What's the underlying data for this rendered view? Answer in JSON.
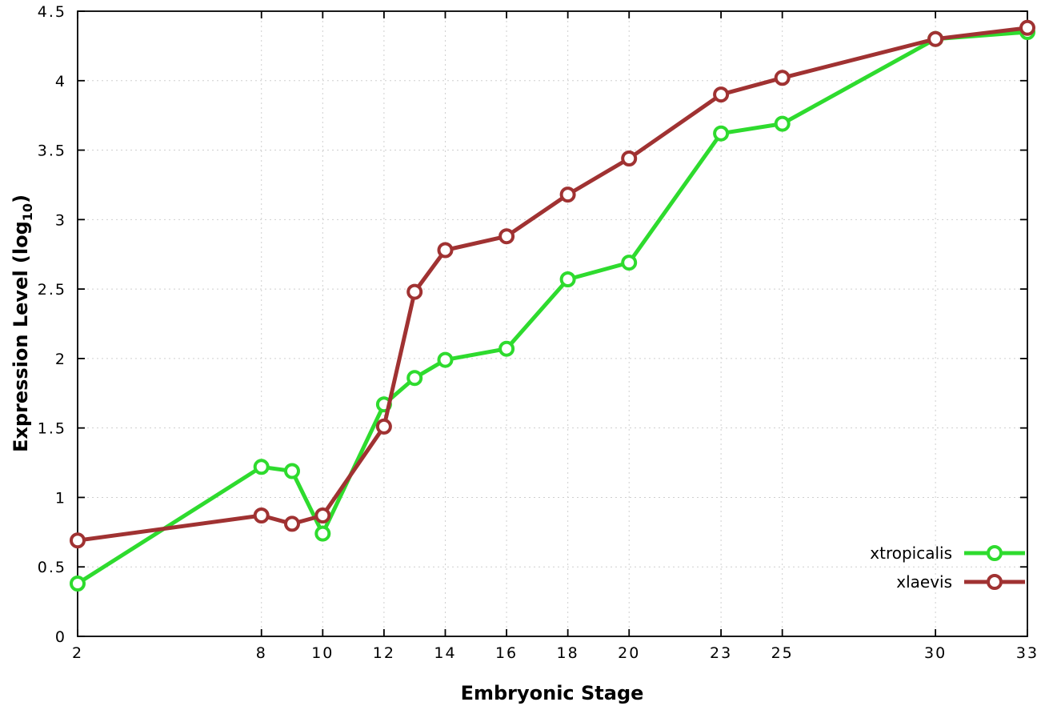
{
  "chart_data": {
    "type": "line",
    "title": "",
    "xlabel": "Embryonic Stage",
    "ylabel": "Expression Level (log10)",
    "ylabel_parts": {
      "prefix": "Expression Level (log",
      "sub": "10",
      "suffix": ")"
    },
    "xlim": [
      2,
      33
    ],
    "ylim": [
      0,
      4.5
    ],
    "x_ticks": [
      2,
      8,
      10,
      12,
      14,
      16,
      18,
      20,
      23,
      25,
      30,
      33
    ],
    "y_ticks": [
      0,
      0.5,
      1,
      1.5,
      2,
      2.5,
      3,
      3.5,
      4,
      4.5
    ],
    "grid": true,
    "legend_position": "inside-bottom-right",
    "x": [
      2,
      8,
      9,
      10,
      12,
      13,
      14,
      16,
      18,
      20,
      23,
      25,
      30,
      33
    ],
    "series": [
      {
        "name": "xtropicalis",
        "color": "#2edb2e",
        "values": [
          0.38,
          1.22,
          1.19,
          0.74,
          1.67,
          1.86,
          1.99,
          2.07,
          2.57,
          2.69,
          3.62,
          3.69,
          4.3,
          4.35
        ]
      },
      {
        "name": "xlaevis",
        "color": "#a03232",
        "values": [
          0.69,
          0.87,
          0.81,
          0.87,
          1.51,
          2.48,
          2.78,
          2.88,
          3.18,
          3.44,
          3.9,
          4.02,
          4.3,
          4.38
        ]
      }
    ]
  }
}
